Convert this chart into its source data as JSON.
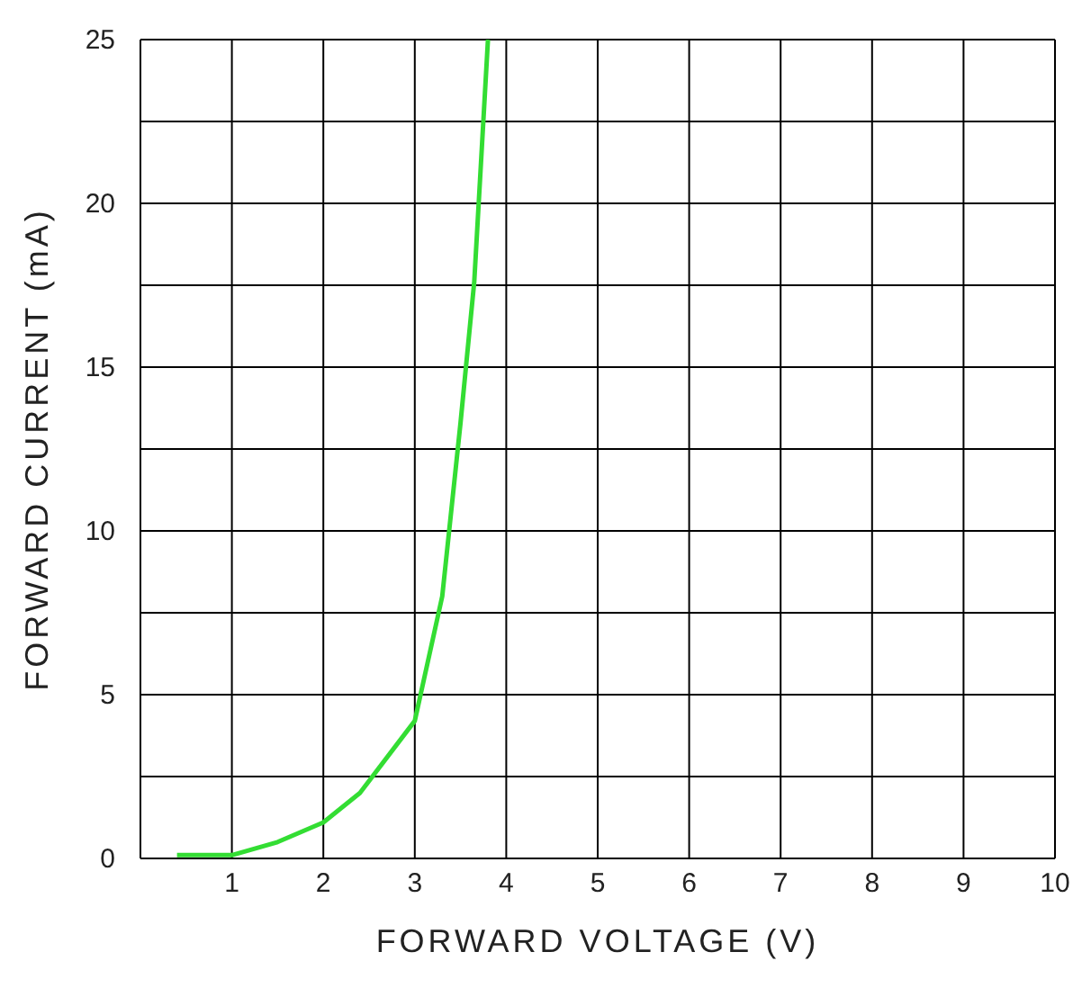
{
  "chart_data": {
    "type": "line",
    "xlabel": "FORWARD VOLTAGE (V)",
    "ylabel": "FORWARD CURRENT (mA)",
    "x": [
      0.4,
      1,
      1.5,
      2,
      2.4,
      3,
      3.3,
      3.5,
      3.65,
      3.8
    ],
    "series": [
      {
        "color": "#33dd33",
        "values": [
          0.1,
          0.1,
          0.5,
          1.1,
          2,
          4.2,
          8,
          13.3,
          17.6,
          25
        ]
      }
    ],
    "xlim": [
      0,
      10
    ],
    "xticks": [
      {
        "value": 0,
        "label": null
      },
      1,
      2,
      3,
      4,
      5,
      6,
      7,
      8,
      9,
      10
    ],
    "ylim": [
      0,
      25
    ],
    "yticks": [
      0,
      {
        "value": 2.5,
        "label": null
      },
      5,
      {
        "value": 7.5,
        "label": null
      },
      10,
      {
        "value": 12.5,
        "label": null
      },
      15,
      {
        "value": 17.5,
        "label": null
      },
      20,
      {
        "value": 22.5,
        "label": null
      },
      25
    ],
    "grid": true,
    "marker": "none",
    "line_style": "solid"
  }
}
